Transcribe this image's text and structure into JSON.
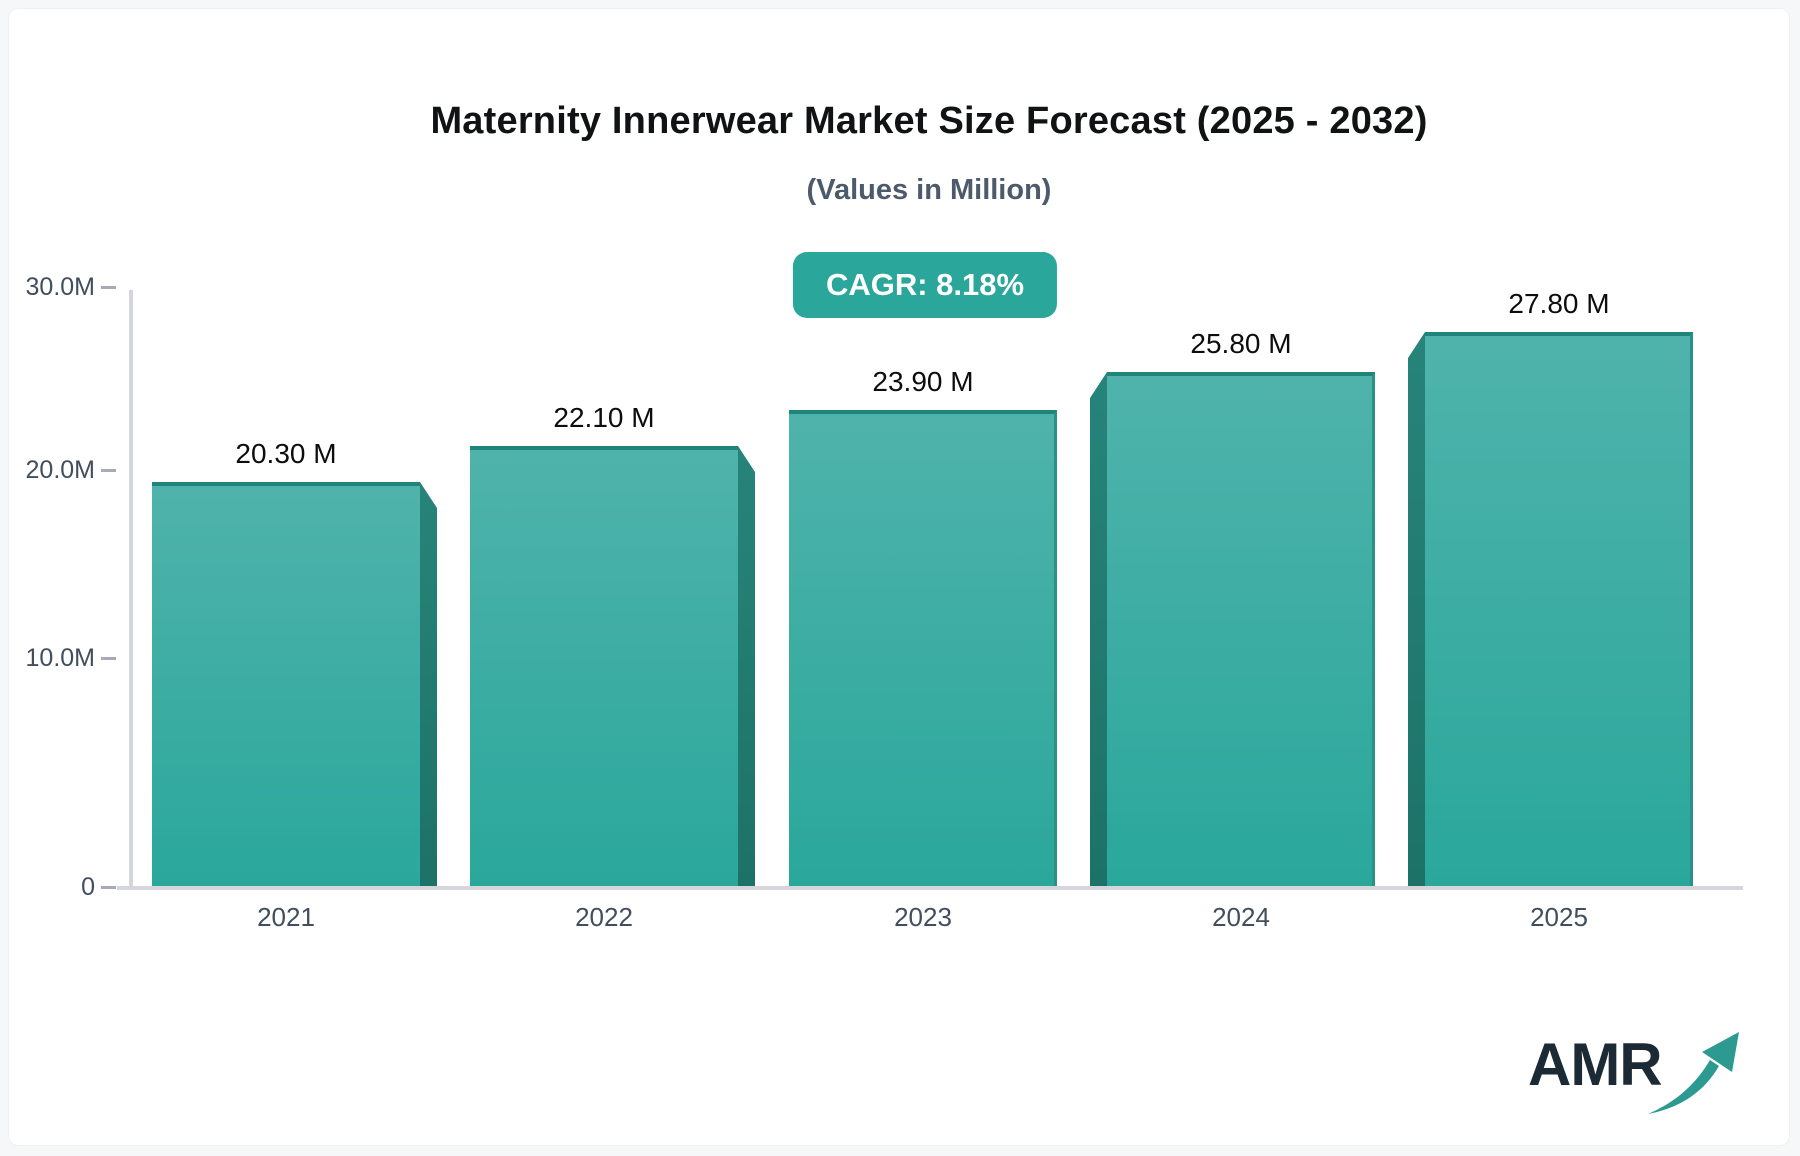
{
  "header": {
    "title": "Maternity Innerwear Market Size Forecast (2025 - 2032)",
    "subtitle": "(Values in Million)",
    "cagr_badge": "CAGR: 8.18%"
  },
  "chart_data": {
    "type": "bar",
    "title": "Maternity Innerwear Market Size Forecast (2025 - 2032)",
    "subtitle": "(Values in Million)",
    "unit": "Million",
    "cagr_percent": 8.18,
    "categories": [
      "2021",
      "2022",
      "2023",
      "2024",
      "2025"
    ],
    "values": [
      20.3,
      22.1,
      23.9,
      25.8,
      27.8
    ],
    "value_labels": [
      "20.30 M",
      "22.10 M",
      "23.90 M",
      "25.80 M",
      "27.80 M"
    ],
    "ylim": [
      0,
      30
    ],
    "yticks": [
      {
        "label": "30.0M",
        "value": 30
      },
      {
        "label": "20.0M",
        "value": 20
      },
      {
        "label": "10.0M",
        "value": 10
      },
      {
        "label": "0",
        "value": 0
      }
    ],
    "grid": false,
    "legend": "none",
    "bar_style": "3d-perspective"
  },
  "colors": {
    "accent_teal": "#2aa69a",
    "bar_gradient_top": "#4fb3ab",
    "bar_gradient_bottom": "#2aa79b",
    "bar_top_edge": "#1f857a",
    "bar_side_shade": "#1d7267",
    "subtitle_text": "#4c5a6b",
    "axis_text": "#414e5e",
    "axis_line": "#d5d6dc",
    "logo_navy": "#1b2a35",
    "logo_teal": "#2d9a92"
  },
  "logo": {
    "text": "AMR",
    "icon": "growth-arrow-icon"
  }
}
